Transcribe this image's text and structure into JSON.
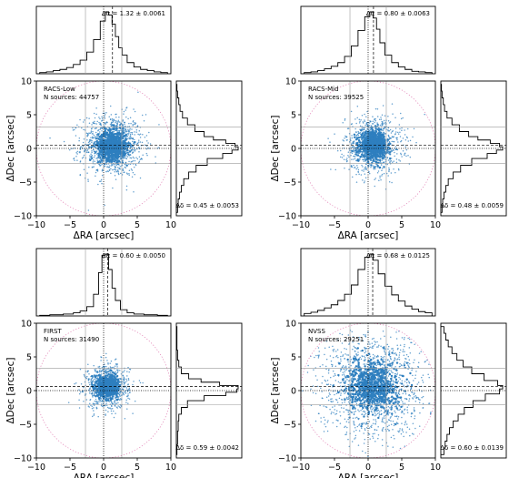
{
  "chart_data": [
    {
      "type": "scatter",
      "survey": "RACS-Low",
      "panel_label": "RACS-Low",
      "n_sources_label": "N sources: 44757",
      "n_sources": 44757,
      "xlabel": "ΔRA [arcsec]",
      "ylabel": "ΔDec [arcsec]",
      "xlim": [
        -10,
        10
      ],
      "ylim": [
        -10,
        10
      ],
      "xticks": [
        -10,
        -5,
        0,
        5,
        10
      ],
      "yticks": [
        -10,
        -5,
        0,
        5,
        10
      ],
      "tick_labels": [
        "−10",
        "−5",
        "0",
        "5",
        "10"
      ],
      "offset_ra": 1.32,
      "offset_dec": 0.45,
      "annotation_ra": "Δα = 1.32 ± 0.0061",
      "annotation_dec": "Δδ = 0.45 ± 0.0053",
      "ra_hist": {
        "bin_centers": [
          -9,
          -8,
          -7,
          -6,
          -5,
          -4,
          -3,
          -2,
          -1,
          0,
          0.5,
          1,
          1.5,
          2,
          2.5,
          3,
          4,
          5,
          6,
          7,
          8,
          9
        ],
        "counts": [
          0.02,
          0.03,
          0.05,
          0.07,
          0.1,
          0.15,
          0.22,
          0.35,
          0.55,
          0.85,
          1.0,
          0.95,
          0.8,
          0.6,
          0.42,
          0.3,
          0.18,
          0.11,
          0.07,
          0.05,
          0.03,
          0.02
        ]
      },
      "dec_hist": {
        "bin_centers": [
          -9,
          -8,
          -7,
          -6,
          -5,
          -4,
          -3,
          -2,
          -1,
          -0.5,
          0,
          0.5,
          1,
          1.5,
          2,
          3,
          4,
          5,
          6,
          7,
          8,
          9
        ],
        "counts": [
          0.02,
          0.03,
          0.05,
          0.08,
          0.12,
          0.2,
          0.32,
          0.5,
          0.75,
          0.9,
          1.0,
          0.95,
          0.8,
          0.6,
          0.45,
          0.3,
          0.18,
          0.1,
          0.06,
          0.04,
          0.02,
          0.01
        ]
      },
      "cloud_sigma": 2.3,
      "cloud_points": 1100
    },
    {
      "type": "scatter",
      "survey": "RACS-Mid",
      "panel_label": "RACS-Mid",
      "n_sources_label": "N sources: 39525",
      "n_sources": 39525,
      "xlabel": "ΔRA [arcsec]",
      "ylabel": "ΔDec [arcsec]",
      "xlim": [
        -10,
        10
      ],
      "ylim": [
        -10,
        10
      ],
      "xticks": [
        -10,
        -5,
        0,
        5,
        10
      ],
      "yticks": [
        -10,
        -5,
        0,
        5,
        10
      ],
      "tick_labels": [
        "−10",
        "−5",
        "0",
        "5",
        "10"
      ],
      "offset_ra": 0.8,
      "offset_dec": 0.48,
      "annotation_ra": "Δα = 0.80 ± 0.0063",
      "annotation_dec": "Δδ = 0.48 ± 0.0059",
      "ra_hist": {
        "bin_centers": [
          -9,
          -8,
          -7,
          -6,
          -5,
          -4,
          -3,
          -2,
          -1,
          0,
          0.5,
          1,
          1.5,
          2,
          3,
          4,
          5,
          6,
          7,
          8,
          9
        ],
        "counts": [
          0.02,
          0.03,
          0.05,
          0.08,
          0.12,
          0.18,
          0.28,
          0.45,
          0.7,
          0.92,
          1.0,
          0.9,
          0.72,
          0.5,
          0.3,
          0.18,
          0.11,
          0.07,
          0.04,
          0.03,
          0.02
        ]
      },
      "dec_hist": {
        "bin_centers": [
          -9,
          -8,
          -7,
          -6,
          -5,
          -4,
          -3,
          -2,
          -1,
          -0.5,
          0,
          0.5,
          1,
          1.5,
          2,
          3,
          4,
          5,
          6,
          7,
          8,
          9
        ],
        "counts": [
          0.02,
          0.03,
          0.05,
          0.08,
          0.12,
          0.2,
          0.32,
          0.5,
          0.75,
          0.9,
          1.0,
          0.95,
          0.8,
          0.6,
          0.45,
          0.3,
          0.18,
          0.1,
          0.06,
          0.04,
          0.02,
          0.01
        ]
      },
      "cloud_sigma": 2.1,
      "cloud_points": 1000
    },
    {
      "type": "scatter",
      "survey": "FIRST",
      "panel_label": "FIRST",
      "n_sources_label": "N sources: 31490",
      "n_sources": 31490,
      "xlabel": "ΔRA [arcsec]",
      "ylabel": "ΔDec [arcsec]",
      "xlim": [
        -10,
        10
      ],
      "ylim": [
        -10,
        10
      ],
      "xticks": [
        -10,
        -5,
        0,
        5,
        10
      ],
      "yticks": [
        -10,
        -5,
        0,
        5,
        10
      ],
      "tick_labels": [
        "−10",
        "−5",
        "0",
        "5",
        "10"
      ],
      "offset_ra": 0.6,
      "offset_dec": 0.59,
      "annotation_ra": "Δα = 0.60 ± 0.0050",
      "annotation_dec": "Δδ = 0.59 ± 0.0042",
      "ra_hist": {
        "bin_centers": [
          -9,
          -7,
          -5,
          -4,
          -3,
          -2,
          -1,
          -0.5,
          0,
          0.5,
          1,
          1.5,
          2,
          3,
          4,
          5,
          7,
          9
        ],
        "counts": [
          0.01,
          0.02,
          0.03,
          0.05,
          0.08,
          0.15,
          0.35,
          0.7,
          0.98,
          1.0,
          0.75,
          0.45,
          0.25,
          0.1,
          0.05,
          0.03,
          0.02,
          0.01
        ]
      },
      "dec_hist": {
        "bin_centers": [
          -9,
          -7,
          -5,
          -4,
          -3,
          -2,
          -1,
          -0.5,
          0,
          0.5,
          1,
          1.5,
          2,
          3,
          4,
          5,
          7,
          9
        ],
        "counts": [
          0.01,
          0.02,
          0.03,
          0.04,
          0.08,
          0.18,
          0.45,
          0.8,
          0.98,
          1.0,
          0.7,
          0.4,
          0.2,
          0.08,
          0.04,
          0.02,
          0.01,
          0.01
        ]
      },
      "cloud_sigma": 1.6,
      "cloud_points": 900
    },
    {
      "type": "scatter",
      "survey": "NVSS",
      "panel_label": "NVSS",
      "n_sources_label": "N sources: 29251",
      "n_sources": 29251,
      "xlabel": "ΔRA [arcsec]",
      "ylabel": "ΔDec [arcsec]",
      "xlim": [
        -10,
        10
      ],
      "ylim": [
        -10,
        10
      ],
      "xticks": [
        -10,
        -5,
        0,
        5,
        10
      ],
      "yticks": [
        -10,
        -5,
        0,
        5,
        10
      ],
      "tick_labels": [
        "−10",
        "−5",
        "0",
        "5",
        "10"
      ],
      "offset_ra": 0.68,
      "offset_dec": 0.6,
      "annotation_ra": "Δα = 0.68 ± 0.0125",
      "annotation_dec": "Δδ = 0.60 ± 0.0139",
      "ra_hist": {
        "bin_centers": [
          -9,
          -8,
          -7,
          -6,
          -5,
          -4,
          -3,
          -2,
          -1,
          0,
          0.5,
          1,
          2,
          3,
          4,
          5,
          6,
          7,
          8,
          9
        ],
        "counts": [
          0.04,
          0.06,
          0.09,
          0.13,
          0.18,
          0.25,
          0.35,
          0.5,
          0.75,
          0.95,
          1.0,
          0.9,
          0.68,
          0.48,
          0.34,
          0.24,
          0.16,
          0.11,
          0.07,
          0.05
        ]
      },
      "dec_hist": {
        "bin_centers": [
          -9,
          -8,
          -7,
          -6,
          -5,
          -4,
          -3,
          -2,
          -1,
          0,
          0.5,
          1,
          2,
          3,
          4,
          5,
          6,
          7,
          8,
          9
        ],
        "counts": [
          0.05,
          0.07,
          0.1,
          0.14,
          0.2,
          0.28,
          0.38,
          0.52,
          0.72,
          0.95,
          1.0,
          0.92,
          0.7,
          0.5,
          0.36,
          0.26,
          0.18,
          0.12,
          0.08,
          0.05
        ]
      },
      "cloud_sigma": 4.0,
      "cloud_points": 1400
    }
  ],
  "colors": {
    "points": "#2e7fbf",
    "circle": "#e07ab0",
    "guides": "#9a9a9a",
    "axes": "#000000"
  }
}
